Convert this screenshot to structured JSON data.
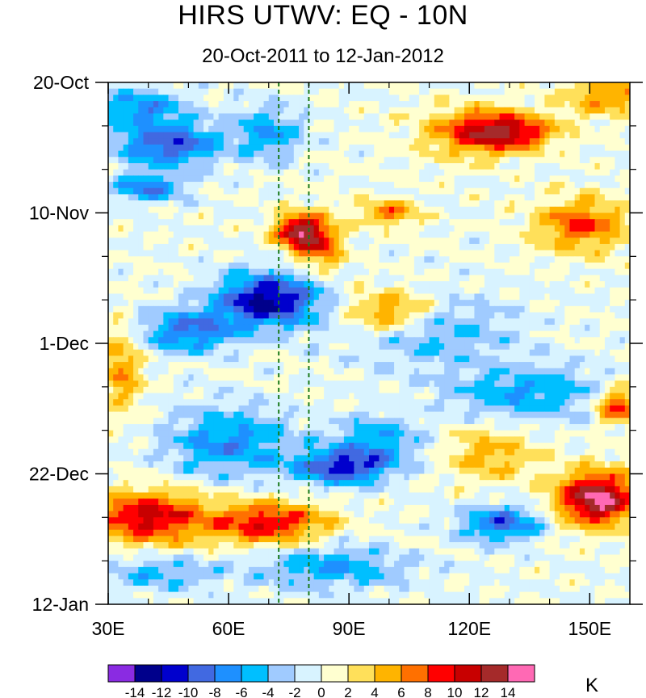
{
  "chart_data": {
    "type": "heatmap",
    "title": "HIRS UTWV: EQ - 10N",
    "subtitle": "20-Oct-2011 to 12-Jan-2012",
    "x_axis": {
      "range": [
        30,
        160
      ],
      "ticks": [
        30,
        60,
        90,
        120,
        150
      ],
      "tick_labels": [
        "30E",
        "60E",
        "90E",
        "120E",
        "150E"
      ]
    },
    "y_axis": {
      "range_days": [
        0,
        84
      ],
      "ticks_days": [
        0,
        21,
        42,
        63,
        84
      ],
      "tick_labels": [
        "20-Oct",
        "10-Nov",
        "1-Dec",
        "22-Dec",
        "12-Jan"
      ]
    },
    "reference_lines_x": [
      72.5,
      80
    ],
    "colorbar": {
      "levels": [
        -14,
        -12,
        -10,
        -8,
        -6,
        -4,
        -2,
        0,
        2,
        4,
        6,
        8,
        10,
        12,
        14
      ],
      "level_labels": [
        "-14",
        "-12",
        "-10",
        "-8",
        "-6",
        "-4",
        "-2",
        "0",
        "2",
        "4",
        "6",
        "8",
        "10",
        "12",
        "14"
      ],
      "colors": [
        "#8a2be2",
        "#00008b",
        "#0000cd",
        "#4169e1",
        "#1e90ff",
        "#00bfff",
        "#a0cbff",
        "#d8f3ff",
        "#ffffd0",
        "#ffe05a",
        "#ffb400",
        "#ff7000",
        "#ff0000",
        "#c80000",
        "#a52a2a",
        "#ff69b4"
      ],
      "unit": "K"
    },
    "anomaly_features": [
      {
        "lon": 45,
        "day": 10,
        "value": -10,
        "sx": 9,
        "sy": 2.5
      },
      {
        "lon": 38,
        "day": 4,
        "value": -7,
        "sx": 8,
        "sy": 2
      },
      {
        "lon": 40,
        "day": 17,
        "value": -8,
        "sx": 6,
        "sy": 1.5
      },
      {
        "lon": 70,
        "day": 35,
        "value": -13,
        "sx": 9,
        "sy": 3
      },
      {
        "lon": 50,
        "day": 40,
        "value": -8,
        "sx": 9,
        "sy": 2.5
      },
      {
        "lon": 60,
        "day": 58,
        "value": -7,
        "sx": 11,
        "sy": 4
      },
      {
        "lon": 88,
        "day": 62,
        "value": -10,
        "sx": 8,
        "sy": 2
      },
      {
        "lon": 97,
        "day": 58,
        "value": -6,
        "sx": 8,
        "sy": 3
      },
      {
        "lon": 128,
        "day": 71,
        "value": -9,
        "sx": 7,
        "sy": 2
      },
      {
        "lon": 135,
        "day": 50,
        "value": -6,
        "sx": 14,
        "sy": 3
      },
      {
        "lon": 110,
        "day": 40,
        "value": -5,
        "sx": 14,
        "sy": 4
      },
      {
        "lon": 85,
        "day": 78,
        "value": -6,
        "sx": 14,
        "sy": 2.5
      },
      {
        "lon": 43,
        "day": 79,
        "value": -5,
        "sx": 9,
        "sy": 2
      },
      {
        "lon": 70,
        "day": 8,
        "value": -6,
        "sx": 6,
        "sy": 3
      },
      {
        "lon": 130,
        "day": 8,
        "value": 10,
        "sx": 8,
        "sy": 2
      },
      {
        "lon": 120,
        "day": 8,
        "value": 6,
        "sx": 9,
        "sy": 3
      },
      {
        "lon": 77,
        "day": 24,
        "value": 12,
        "sx": 4,
        "sy": 2
      },
      {
        "lon": 83,
        "day": 26,
        "value": 8,
        "sx": 4,
        "sy": 3
      },
      {
        "lon": 100,
        "day": 37,
        "value": 8,
        "sx": 8,
        "sy": 2.5
      },
      {
        "lon": 100,
        "day": 21,
        "value": 7,
        "sx": 5,
        "sy": 1.5
      },
      {
        "lon": 148,
        "day": 23,
        "value": 8,
        "sx": 8,
        "sy": 3
      },
      {
        "lon": 40,
        "day": 70,
        "value": 11,
        "sx": 10,
        "sy": 3
      },
      {
        "lon": 70,
        "day": 71,
        "value": 10,
        "sx": 10,
        "sy": 2.5
      },
      {
        "lon": 152,
        "day": 67,
        "value": 15,
        "sx": 7,
        "sy": 3
      },
      {
        "lon": 157,
        "day": 52,
        "value": 10,
        "sx": 4,
        "sy": 2
      },
      {
        "lon": 125,
        "day": 60,
        "value": 5,
        "sx": 8,
        "sy": 3
      },
      {
        "lon": 155,
        "day": 2,
        "value": 6,
        "sx": 8,
        "sy": 2.5
      },
      {
        "lon": 33,
        "day": 46,
        "value": 6,
        "sx": 4,
        "sy": 5
      }
    ]
  }
}
